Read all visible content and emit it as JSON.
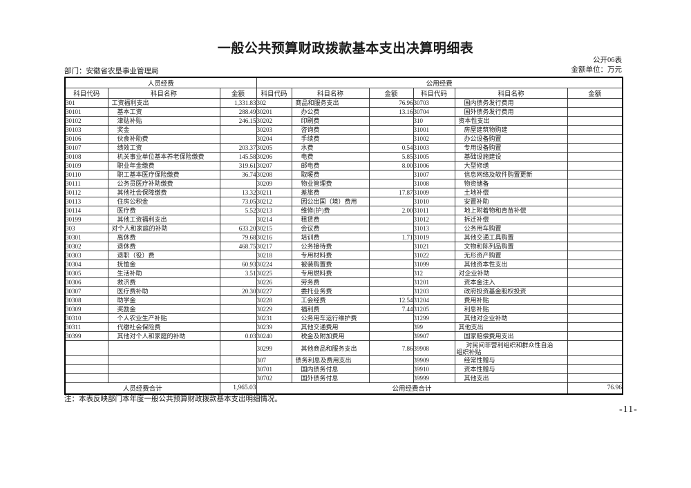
{
  "doc": {
    "title": "一般公共预算财政拨款基本支出决算明细表",
    "form_no": "公开06表",
    "unit": "金额单位：万元",
    "department": "部门：安徽省农垦事业管理局",
    "note": "注：本表反映部门本年度一般公共预算财政拨款基本支出明细情况。",
    "page_number": "-11-"
  },
  "table": {
    "group_headers": {
      "personnel": "人员经费",
      "public": "公用经费"
    },
    "column_headers": {
      "code": "科目代码",
      "name": "科目名称",
      "amount": "金额"
    },
    "totals": {
      "personnel_label": "人员经费合计",
      "personnel_amount": "1,965.03",
      "public_label": "公用经费合计",
      "public_amount": "76.96"
    },
    "personnel_rows": [
      {
        "code": "301",
        "name": "工资福利支出",
        "amount": "1,331.83",
        "level": 1
      },
      {
        "code": "30101",
        "name": "基本工资",
        "amount": "288.49",
        "level": 2
      },
      {
        "code": "30102",
        "name": "津贴补贴",
        "amount": "246.15",
        "level": 2
      },
      {
        "code": "30103",
        "name": "奖金",
        "amount": "",
        "level": 2
      },
      {
        "code": "30106",
        "name": "伙食补助费",
        "amount": "",
        "level": 2
      },
      {
        "code": "30107",
        "name": "绩效工资",
        "amount": "203.37",
        "level": 2
      },
      {
        "code": "30108",
        "name": "机关事业单位基本养老保险缴费",
        "amount": "145.58",
        "level": 2
      },
      {
        "code": "30109",
        "name": "职业年金缴费",
        "amount": "319.61",
        "level": 2
      },
      {
        "code": "30110",
        "name": "职工基本医疗保险缴费",
        "amount": "36.74",
        "level": 2
      },
      {
        "code": "30111",
        "name": "公务员医疗补助缴费",
        "amount": "",
        "level": 2
      },
      {
        "code": "30112",
        "name": "其他社会保障缴费",
        "amount": "13.32",
        "level": 2
      },
      {
        "code": "30113",
        "name": "住房公积金",
        "amount": "73.05",
        "level": 2
      },
      {
        "code": "30114",
        "name": "医疗费",
        "amount": "5.52",
        "level": 2
      },
      {
        "code": "30199",
        "name": "其他工资福利支出",
        "amount": "",
        "level": 2
      },
      {
        "code": "303",
        "name": "对个人和家庭的补助",
        "amount": "633.20",
        "level": 1
      },
      {
        "code": "30301",
        "name": "离休费",
        "amount": "79.68",
        "level": 2
      },
      {
        "code": "30302",
        "name": "退休费",
        "amount": "468.75",
        "level": 2
      },
      {
        "code": "30303",
        "name": "退职（役）费",
        "amount": "",
        "level": 2
      },
      {
        "code": "30304",
        "name": "抚恤金",
        "amount": "60.93",
        "level": 2
      },
      {
        "code": "30305",
        "name": "生活补助",
        "amount": "3.51",
        "level": 2
      },
      {
        "code": "30306",
        "name": "救济费",
        "amount": "",
        "level": 2
      },
      {
        "code": "30307",
        "name": "医疗费补助",
        "amount": "20.30",
        "level": 2
      },
      {
        "code": "30308",
        "name": "助学金",
        "amount": "",
        "level": 2
      },
      {
        "code": "30309",
        "name": "奖励金",
        "amount": "",
        "level": 2
      },
      {
        "code": "30310",
        "name": "个人农业生产补贴",
        "amount": "",
        "level": 2
      },
      {
        "code": "30311",
        "name": "代缴社会保险费",
        "amount": "",
        "level": 2
      },
      {
        "code": "30399",
        "name": "其他对个人和家庭的补助",
        "amount": "0.03",
        "level": 2
      },
      null,
      null,
      null,
      null
    ],
    "public_rows_1": [
      {
        "code": "302",
        "name": "商品和服务支出",
        "amount": "76.96",
        "level": 1
      },
      {
        "code": "30201",
        "name": "办公费",
        "amount": "13.16",
        "level": 2
      },
      {
        "code": "30202",
        "name": "印刷费",
        "amount": "",
        "level": 2
      },
      {
        "code": "30203",
        "name": "咨询费",
        "amount": "",
        "level": 2
      },
      {
        "code": "30204",
        "name": "手续费",
        "amount": "",
        "level": 2
      },
      {
        "code": "30205",
        "name": "水费",
        "amount": "0.54",
        "level": 2
      },
      {
        "code": "30206",
        "name": "电费",
        "amount": "5.85",
        "level": 2
      },
      {
        "code": "30207",
        "name": "邮电费",
        "amount": "8.00",
        "level": 2
      },
      {
        "code": "30208",
        "name": "取暖费",
        "amount": "",
        "level": 2
      },
      {
        "code": "30209",
        "name": "物业管理费",
        "amount": "",
        "level": 2
      },
      {
        "code": "30211",
        "name": "差旅费",
        "amount": "17.87",
        "level": 2
      },
      {
        "code": "30212",
        "name": "因公出国（境）费用",
        "amount": "",
        "level": 2
      },
      {
        "code": "30213",
        "name": "维修(护)费",
        "amount": "2.00",
        "level": 2
      },
      {
        "code": "30214",
        "name": "租赁费",
        "amount": "",
        "level": 2
      },
      {
        "code": "30215",
        "name": "会议费",
        "amount": "",
        "level": 2
      },
      {
        "code": "30216",
        "name": "培训费",
        "amount": "1.71",
        "level": 2
      },
      {
        "code": "30217",
        "name": "公务接待费",
        "amount": "",
        "level": 2
      },
      {
        "code": "30218",
        "name": "专用材料费",
        "amount": "",
        "level": 2
      },
      {
        "code": "30224",
        "name": "被装购置费",
        "amount": "",
        "level": 2
      },
      {
        "code": "30225",
        "name": "专用燃料费",
        "amount": "",
        "level": 2
      },
      {
        "code": "30226",
        "name": "劳务费",
        "amount": "",
        "level": 2
      },
      {
        "code": "30227",
        "name": "委托业务费",
        "amount": "",
        "level": 2
      },
      {
        "code": "30228",
        "name": "工会经费",
        "amount": "12.54",
        "level": 2
      },
      {
        "code": "30229",
        "name": "福利费",
        "amount": "7.44",
        "level": 2
      },
      {
        "code": "30231",
        "name": "公务用车运行维护费",
        "amount": "",
        "level": 2
      },
      {
        "code": "30239",
        "name": "其他交通费用",
        "amount": "",
        "level": 2
      },
      {
        "code": "30240",
        "name": "税金及附加费用",
        "amount": "",
        "level": 2
      },
      {
        "code": "30299",
        "name": "其他商品和服务支出",
        "amount": "7.86",
        "level": 2
      },
      {
        "code": "307",
        "name": "债务利息及费用支出",
        "amount": "",
        "level": 1
      },
      {
        "code": "30701",
        "name": "国内债务付息",
        "amount": "",
        "level": 2
      },
      {
        "code": "30702",
        "name": "国外债务付息",
        "amount": "",
        "level": 2
      }
    ],
    "public_rows_2": [
      {
        "code": "30703",
        "name": "国内债务发行费用",
        "amount": "",
        "level": 2
      },
      {
        "code": "30704",
        "name": "国外债务发行费用",
        "amount": "",
        "level": 2
      },
      {
        "code": "310",
        "name": "资本性支出",
        "amount": "",
        "level": 1
      },
      {
        "code": "31001",
        "name": "房屋建筑物购建",
        "amount": "",
        "level": 2
      },
      {
        "code": "31002",
        "name": "办公设备购置",
        "amount": "",
        "level": 2
      },
      {
        "code": "31003",
        "name": "专用设备购置",
        "amount": "",
        "level": 2
      },
      {
        "code": "31005",
        "name": "基础设施建设",
        "amount": "",
        "level": 2
      },
      {
        "code": "31006",
        "name": "大型修缮",
        "amount": "",
        "level": 2
      },
      {
        "code": "31007",
        "name": "信息网络及软件购置更新",
        "amount": "",
        "level": 2
      },
      {
        "code": "31008",
        "name": "物资储备",
        "amount": "",
        "level": 2
      },
      {
        "code": "31009",
        "name": "土地补偿",
        "amount": "",
        "level": 2
      },
      {
        "code": "31010",
        "name": "安置补助",
        "amount": "",
        "level": 2
      },
      {
        "code": "31011",
        "name": "地上附着物和青苗补偿",
        "amount": "",
        "level": 2
      },
      {
        "code": "31012",
        "name": "拆迁补偿",
        "amount": "",
        "level": 2
      },
      {
        "code": "31013",
        "name": "公务用车购置",
        "amount": "",
        "level": 2
      },
      {
        "code": "31019",
        "name": "其他交通工具购置",
        "amount": "",
        "level": 2
      },
      {
        "code": "31021",
        "name": "文物和陈列品购置",
        "amount": "",
        "level": 2
      },
      {
        "code": "31022",
        "name": "无形资产购置",
        "amount": "",
        "level": 2
      },
      {
        "code": "31099",
        "name": "其他资本性支出",
        "amount": "",
        "level": 2
      },
      {
        "code": "312",
        "name": "对企业补助",
        "amount": "",
        "level": 1
      },
      {
        "code": "31201",
        "name": "资本金注入",
        "amount": "",
        "level": 2
      },
      {
        "code": "31203",
        "name": "政府投资基金股权投资",
        "amount": "",
        "level": 2
      },
      {
        "code": "31204",
        "name": "费用补贴",
        "amount": "",
        "level": 2
      },
      {
        "code": "31205",
        "name": "利息补贴",
        "amount": "",
        "level": 2
      },
      {
        "code": "31299",
        "name": "其他对企业补助",
        "amount": "",
        "level": 2
      },
      {
        "code": "399",
        "name": "其他支出",
        "amount": "",
        "level": 1
      },
      {
        "code": "39907",
        "name": "国家赔偿费用支出",
        "amount": "",
        "level": 2
      },
      {
        "code": "39908",
        "name": "对民间非营利组织和群众性自治\n组织补贴",
        "amount": "",
        "level": 2,
        "wrap": true
      },
      {
        "code": "39909",
        "name": "经常性赠与",
        "amount": "",
        "level": 2
      },
      {
        "code": "39910",
        "name": "资本性赠与",
        "amount": "",
        "level": 2
      },
      {
        "code": "39999",
        "name": "其他支出",
        "amount": "",
        "level": 2
      }
    ]
  }
}
